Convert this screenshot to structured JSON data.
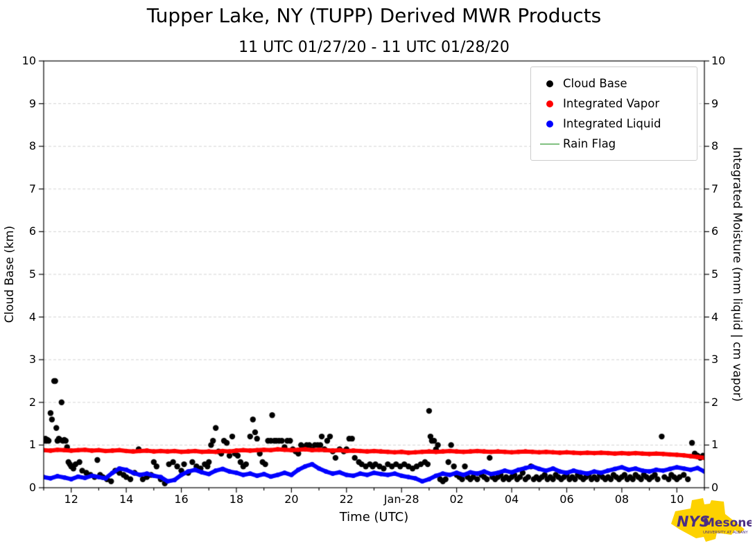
{
  "chart_data": {
    "type": "scatter",
    "title": "Tupper Lake, NY (TUPP) Derived MWR Products",
    "subtitle": "11 UTC 01/27/20 - 11 UTC 01/28/20",
    "xlabel": "Time (UTC)",
    "ylabel_left": "Cloud Base (km)",
    "ylabel_right": "Integrated Moisture (mm liquid | cm vapor)",
    "xlim": [
      11,
      35
    ],
    "ylim_left": [
      0,
      10
    ],
    "ylim_right": [
      0,
      10
    ],
    "grid": {
      "horizontal": true,
      "style": "dashed",
      "color": "#d3d3d3"
    },
    "x_major_ticks": [
      {
        "value": 12,
        "label": "12"
      },
      {
        "value": 14,
        "label": "14"
      },
      {
        "value": 16,
        "label": "16"
      },
      {
        "value": 18,
        "label": "18"
      },
      {
        "value": 20,
        "label": "20"
      },
      {
        "value": 22,
        "label": "22"
      },
      {
        "value": 24,
        "label": "Jan-28"
      },
      {
        "value": 26,
        "label": "02"
      },
      {
        "value": 28,
        "label": "04"
      },
      {
        "value": 30,
        "label": "06"
      },
      {
        "value": 32,
        "label": "08"
      },
      {
        "value": 34,
        "label": "10"
      }
    ],
    "x_minor_tick_step": 1,
    "y_ticks_left": [
      "0",
      "1",
      "2",
      "3",
      "4",
      "5",
      "6",
      "7",
      "8",
      "9",
      "10"
    ],
    "y_ticks_right": [
      "0",
      "1",
      "2",
      "3",
      "4",
      "5",
      "6",
      "7",
      "8",
      "9",
      "10"
    ],
    "legend": {
      "position": "top-right",
      "entries": [
        {
          "label": "Cloud Base",
          "color": "#000000",
          "marker": "dot"
        },
        {
          "label": "Integrated Vapor",
          "color": "#ff0000",
          "marker": "dot"
        },
        {
          "label": "Integrated Liquid",
          "color": "#0000ff",
          "marker": "dot"
        },
        {
          "label": "Rain Flag",
          "color": "#80c080",
          "marker": "line"
        }
      ]
    },
    "series": [
      {
        "name": "Cloud Base",
        "type": "scatter",
        "color": "#000000",
        "marker_radius": 4.2,
        "points": [
          [
            11.02,
            1.1
          ],
          [
            11.06,
            1.15
          ],
          [
            11.1,
            1.1
          ],
          [
            11.14,
            1.12
          ],
          [
            11.18,
            1.1
          ],
          [
            11.25,
            1.75
          ],
          [
            11.3,
            1.6
          ],
          [
            11.38,
            2.5
          ],
          [
            11.42,
            2.5
          ],
          [
            11.46,
            1.4
          ],
          [
            11.5,
            1.1
          ],
          [
            11.55,
            1.15
          ],
          [
            11.6,
            1.12
          ],
          [
            11.65,
            2.0
          ],
          [
            11.7,
            1.1
          ],
          [
            11.75,
            1.12
          ],
          [
            11.8,
            1.1
          ],
          [
            11.85,
            0.95
          ],
          [
            11.9,
            0.6
          ],
          [
            11.95,
            0.55
          ],
          [
            12.0,
            0.5
          ],
          [
            12.08,
            0.45
          ],
          [
            12.16,
            0.55
          ],
          [
            12.3,
            0.6
          ],
          [
            12.4,
            0.4
          ],
          [
            12.55,
            0.35
          ],
          [
            12.7,
            0.3
          ],
          [
            12.85,
            0.25
          ],
          [
            12.95,
            0.65
          ],
          [
            13.05,
            0.3
          ],
          [
            13.15,
            0.25
          ],
          [
            13.3,
            0.2
          ],
          [
            13.45,
            0.15
          ],
          [
            13.6,
            0.4
          ],
          [
            13.75,
            0.35
          ],
          [
            13.9,
            0.3
          ],
          [
            14.0,
            0.25
          ],
          [
            14.15,
            0.2
          ],
          [
            14.3,
            0.35
          ],
          [
            14.45,
            0.9
          ],
          [
            14.6,
            0.2
          ],
          [
            14.75,
            0.25
          ],
          [
            14.9,
            0.3
          ],
          [
            15.0,
            0.6
          ],
          [
            15.1,
            0.5
          ],
          [
            15.25,
            0.2
          ],
          [
            15.4,
            0.1
          ],
          [
            15.55,
            0.55
          ],
          [
            15.7,
            0.6
          ],
          [
            15.85,
            0.5
          ],
          [
            16.0,
            0.4
          ],
          [
            16.1,
            0.55
          ],
          [
            16.25,
            0.35
          ],
          [
            16.4,
            0.6
          ],
          [
            16.55,
            0.5
          ],
          [
            16.7,
            0.45
          ],
          [
            16.85,
            0.55
          ],
          [
            16.95,
            0.5
          ],
          [
            17.0,
            0.6
          ],
          [
            17.08,
            1.0
          ],
          [
            17.15,
            1.1
          ],
          [
            17.25,
            1.4
          ],
          [
            17.35,
            0.85
          ],
          [
            17.45,
            0.8
          ],
          [
            17.55,
            1.1
          ],
          [
            17.65,
            1.05
          ],
          [
            17.75,
            0.75
          ],
          [
            17.85,
            1.2
          ],
          [
            17.95,
            0.8
          ],
          [
            18.05,
            0.75
          ],
          [
            18.15,
            0.6
          ],
          [
            18.25,
            0.5
          ],
          [
            18.35,
            0.55
          ],
          [
            18.5,
            1.2
          ],
          [
            18.6,
            1.6
          ],
          [
            18.68,
            1.3
          ],
          [
            18.75,
            1.15
          ],
          [
            18.85,
            0.8
          ],
          [
            18.95,
            0.6
          ],
          [
            19.05,
            0.55
          ],
          [
            19.15,
            1.1
          ],
          [
            19.25,
            1.1
          ],
          [
            19.3,
            1.7
          ],
          [
            19.38,
            1.1
          ],
          [
            19.45,
            1.1
          ],
          [
            19.55,
            1.1
          ],
          [
            19.65,
            1.1
          ],
          [
            19.75,
            0.95
          ],
          [
            19.85,
            1.1
          ],
          [
            19.95,
            1.1
          ],
          [
            20.05,
            0.9
          ],
          [
            20.15,
            0.85
          ],
          [
            20.25,
            0.8
          ],
          [
            20.35,
            1.0
          ],
          [
            20.45,
            0.95
          ],
          [
            20.55,
            1.0
          ],
          [
            20.65,
            1.0
          ],
          [
            20.75,
            0.9
          ],
          [
            20.85,
            1.0
          ],
          [
            20.95,
            1.0
          ],
          [
            21.05,
            1.0
          ],
          [
            21.1,
            1.2
          ],
          [
            21.2,
            0.9
          ],
          [
            21.3,
            1.1
          ],
          [
            21.4,
            1.2
          ],
          [
            21.5,
            0.85
          ],
          [
            21.6,
            0.7
          ],
          [
            21.75,
            0.9
          ],
          [
            21.9,
            0.85
          ],
          [
            22.0,
            0.9
          ],
          [
            22.1,
            1.15
          ],
          [
            22.2,
            1.15
          ],
          [
            22.3,
            0.7
          ],
          [
            22.45,
            0.6
          ],
          [
            22.55,
            0.55
          ],
          [
            22.7,
            0.5
          ],
          [
            22.85,
            0.55
          ],
          [
            22.95,
            0.5
          ],
          [
            23.05,
            0.55
          ],
          [
            23.2,
            0.5
          ],
          [
            23.35,
            0.45
          ],
          [
            23.5,
            0.55
          ],
          [
            23.65,
            0.5
          ],
          [
            23.8,
            0.55
          ],
          [
            23.95,
            0.5
          ],
          [
            24.1,
            0.55
          ],
          [
            24.25,
            0.5
          ],
          [
            24.4,
            0.45
          ],
          [
            24.55,
            0.5
          ],
          [
            24.7,
            0.55
          ],
          [
            24.85,
            0.6
          ],
          [
            24.95,
            0.55
          ],
          [
            25.0,
            1.8
          ],
          [
            25.05,
            1.2
          ],
          [
            25.1,
            1.1
          ],
          [
            25.18,
            1.1
          ],
          [
            25.25,
            0.9
          ],
          [
            25.32,
            1.0
          ],
          [
            25.4,
            0.2
          ],
          [
            25.5,
            0.15
          ],
          [
            25.6,
            0.2
          ],
          [
            25.7,
            0.6
          ],
          [
            25.8,
            1.0
          ],
          [
            25.9,
            0.5
          ],
          [
            26.0,
            0.3
          ],
          [
            26.1,
            0.25
          ],
          [
            26.2,
            0.2
          ],
          [
            26.3,
            0.5
          ],
          [
            26.4,
            0.25
          ],
          [
            26.5,
            0.2
          ],
          [
            26.6,
            0.25
          ],
          [
            26.75,
            0.2
          ],
          [
            26.9,
            0.3
          ],
          [
            27.0,
            0.25
          ],
          [
            27.1,
            0.2
          ],
          [
            27.2,
            0.7
          ],
          [
            27.3,
            0.25
          ],
          [
            27.4,
            0.2
          ],
          [
            27.5,
            0.25
          ],
          [
            27.6,
            0.3
          ],
          [
            27.7,
            0.2
          ],
          [
            27.8,
            0.25
          ],
          [
            27.9,
            0.2
          ],
          [
            28.0,
            0.25
          ],
          [
            28.1,
            0.3
          ],
          [
            28.2,
            0.2
          ],
          [
            28.3,
            0.25
          ],
          [
            28.4,
            0.35
          ],
          [
            28.5,
            0.2
          ],
          [
            28.6,
            0.25
          ],
          [
            28.7,
            0.5
          ],
          [
            28.8,
            0.2
          ],
          [
            28.9,
            0.25
          ],
          [
            29.0,
            0.2
          ],
          [
            29.1,
            0.25
          ],
          [
            29.2,
            0.3
          ],
          [
            29.3,
            0.2
          ],
          [
            29.4,
            0.25
          ],
          [
            29.5,
            0.2
          ],
          [
            29.6,
            0.3
          ],
          [
            29.7,
            0.25
          ],
          [
            29.8,
            0.2
          ],
          [
            29.9,
            0.25
          ],
          [
            30.0,
            0.3
          ],
          [
            30.1,
            0.2
          ],
          [
            30.2,
            0.25
          ],
          [
            30.3,
            0.2
          ],
          [
            30.4,
            0.3
          ],
          [
            30.5,
            0.25
          ],
          [
            30.6,
            0.2
          ],
          [
            30.7,
            0.25
          ],
          [
            30.8,
            0.3
          ],
          [
            30.9,
            0.2
          ],
          [
            31.0,
            0.25
          ],
          [
            31.1,
            0.2
          ],
          [
            31.2,
            0.3
          ],
          [
            31.3,
            0.25
          ],
          [
            31.4,
            0.2
          ],
          [
            31.5,
            0.25
          ],
          [
            31.6,
            0.2
          ],
          [
            31.7,
            0.3
          ],
          [
            31.8,
            0.25
          ],
          [
            31.9,
            0.2
          ],
          [
            32.0,
            0.25
          ],
          [
            32.1,
            0.3
          ],
          [
            32.2,
            0.2
          ],
          [
            32.3,
            0.25
          ],
          [
            32.4,
            0.2
          ],
          [
            32.5,
            0.3
          ],
          [
            32.6,
            0.25
          ],
          [
            32.7,
            0.2
          ],
          [
            32.8,
            0.3
          ],
          [
            32.9,
            0.25
          ],
          [
            33.0,
            0.2
          ],
          [
            33.1,
            0.25
          ],
          [
            33.2,
            0.3
          ],
          [
            33.3,
            0.2
          ],
          [
            33.45,
            1.2
          ],
          [
            33.55,
            0.25
          ],
          [
            33.7,
            0.2
          ],
          [
            33.8,
            0.3
          ],
          [
            33.9,
            0.25
          ],
          [
            34.0,
            0.2
          ],
          [
            34.1,
            0.25
          ],
          [
            34.25,
            0.3
          ],
          [
            34.4,
            0.2
          ],
          [
            34.55,
            1.05
          ],
          [
            34.65,
            0.8
          ],
          [
            34.75,
            0.75
          ],
          [
            34.85,
            0.7
          ],
          [
            34.95,
            0.75
          ]
        ]
      },
      {
        "name": "Integrated Vapor",
        "type": "line",
        "color": "#ff0000",
        "line_width": 6,
        "x_start": 11,
        "x_step": 0.25,
        "y": [
          0.88,
          0.87,
          0.89,
          0.88,
          0.87,
          0.88,
          0.89,
          0.87,
          0.88,
          0.86,
          0.87,
          0.88,
          0.86,
          0.85,
          0.86,
          0.87,
          0.85,
          0.86,
          0.85,
          0.86,
          0.84,
          0.85,
          0.86,
          0.84,
          0.85,
          0.84,
          0.86,
          0.85,
          0.87,
          0.88,
          0.87,
          0.88,
          0.89,
          0.88,
          0.9,
          0.89,
          0.88,
          0.89,
          0.9,
          0.88,
          0.89,
          0.88,
          0.87,
          0.88,
          0.86,
          0.87,
          0.86,
          0.85,
          0.86,
          0.85,
          0.84,
          0.83,
          0.84,
          0.82,
          0.83,
          0.84,
          0.85,
          0.84,
          0.85,
          0.86,
          0.85,
          0.84,
          0.85,
          0.86,
          0.85,
          0.84,
          0.85,
          0.84,
          0.83,
          0.84,
          0.85,
          0.84,
          0.83,
          0.84,
          0.83,
          0.82,
          0.83,
          0.82,
          0.81,
          0.82,
          0.81,
          0.82,
          0.81,
          0.8,
          0.81,
          0.8,
          0.81,
          0.8,
          0.79,
          0.8,
          0.79,
          0.78,
          0.77,
          0.76,
          0.74,
          0.72,
          0.7
        ]
      },
      {
        "name": "Integrated Liquid",
        "type": "line",
        "color": "#0000ff",
        "line_width": 6,
        "x_start": 11,
        "x_step": 0.25,
        "y": [
          0.25,
          0.22,
          0.27,
          0.24,
          0.2,
          0.26,
          0.23,
          0.28,
          0.25,
          0.22,
          0.35,
          0.45,
          0.42,
          0.35,
          0.3,
          0.33,
          0.28,
          0.25,
          0.15,
          0.18,
          0.3,
          0.38,
          0.42,
          0.36,
          0.32,
          0.4,
          0.44,
          0.38,
          0.35,
          0.3,
          0.33,
          0.28,
          0.32,
          0.26,
          0.3,
          0.35,
          0.3,
          0.42,
          0.5,
          0.55,
          0.45,
          0.38,
          0.33,
          0.36,
          0.3,
          0.28,
          0.33,
          0.3,
          0.35,
          0.32,
          0.3,
          0.33,
          0.28,
          0.25,
          0.22,
          0.15,
          0.2,
          0.28,
          0.33,
          0.3,
          0.35,
          0.3,
          0.36,
          0.33,
          0.38,
          0.32,
          0.35,
          0.4,
          0.36,
          0.42,
          0.46,
          0.5,
          0.44,
          0.4,
          0.45,
          0.38,
          0.35,
          0.4,
          0.36,
          0.33,
          0.38,
          0.35,
          0.4,
          0.44,
          0.48,
          0.42,
          0.45,
          0.4,
          0.38,
          0.42,
          0.4,
          0.44,
          0.48,
          0.45,
          0.42,
          0.46,
          0.38
        ]
      },
      {
        "name": "Rain Flag",
        "type": "line",
        "color": "#80c080",
        "line_width": 1.5,
        "x_start": 11,
        "x_step": 0.25,
        "y": []
      }
    ]
  },
  "logo": {
    "nys": "NYS",
    "mesonet": "Mesonet",
    "subtext": "UNIVERSITY AT ALBANY",
    "state_color": "#fdd200",
    "text_color": "#4b2e83"
  }
}
